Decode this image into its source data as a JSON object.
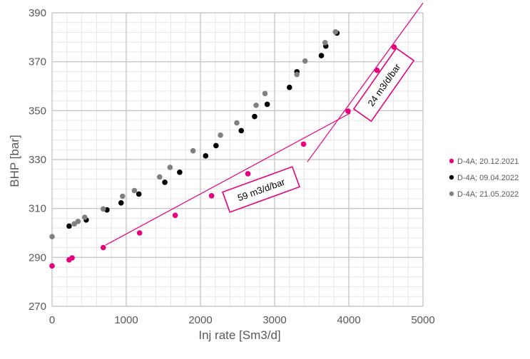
{
  "chart_data": {
    "type": "scatter",
    "xlabel": "Inj rate [Sm3/d]",
    "ylabel": "BHP [bar]",
    "xlim": [
      0,
      5000
    ],
    "ylim": [
      270,
      390
    ],
    "xticks": [
      0,
      1000,
      2000,
      3000,
      4000,
      5000
    ],
    "yticks": [
      270,
      290,
      310,
      330,
      350,
      370,
      390
    ],
    "grid": true,
    "legend_position": "right",
    "series": [
      {
        "name": "D-4A; 20.12.2021",
        "color": "#e6007e",
        "points": [
          [
            0,
            286.5
          ],
          [
            230,
            289
          ],
          [
            270,
            289.8
          ],
          [
            690,
            294
          ],
          [
            1180,
            300
          ],
          [
            1660,
            307.2
          ],
          [
            2150,
            315.2
          ],
          [
            2640,
            324.2
          ],
          [
            3390,
            336.3
          ],
          [
            3990,
            349.8
          ],
          [
            4380,
            366.5
          ],
          [
            4610,
            376
          ]
        ]
      },
      {
        "name": "D-4A; 09.04.2022",
        "color": "#000000",
        "points": [
          [
            230,
            302.8
          ],
          [
            460,
            305.3
          ],
          [
            740,
            309.4
          ],
          [
            930,
            312.3
          ],
          [
            1170,
            315.9
          ],
          [
            1520,
            320.7
          ],
          [
            1720,
            324.8
          ],
          [
            2070,
            331.5
          ],
          [
            2210,
            335.7
          ],
          [
            2550,
            341.8
          ],
          [
            2730,
            347.6
          ],
          [
            2900,
            352.6
          ],
          [
            3200,
            359.5
          ],
          [
            3300,
            365.9
          ],
          [
            3630,
            372.5
          ],
          [
            3690,
            376.4
          ],
          [
            3840,
            381.7
          ]
        ]
      },
      {
        "name": "D-4A; 21.05.2022",
        "color": "#808080",
        "points": [
          [
            0,
            298.5
          ],
          [
            300,
            303.7
          ],
          [
            350,
            304.7
          ],
          [
            440,
            306.4
          ],
          [
            690,
            309.8
          ],
          [
            950,
            315
          ],
          [
            1110,
            317.3
          ],
          [
            1450,
            322.9
          ],
          [
            1590,
            326.8
          ],
          [
            1900,
            333.6
          ],
          [
            2270,
            340
          ],
          [
            2490,
            345
          ],
          [
            2750,
            352.2
          ],
          [
            2870,
            357
          ],
          [
            3300,
            364.8
          ],
          [
            3410,
            370.3
          ],
          [
            3680,
            377.8
          ],
          [
            3820,
            382.2
          ]
        ]
      }
    ],
    "annotations": [
      {
        "text": "59 m3/d/bar",
        "line_from": [
          720,
          295
        ],
        "line_to": [
          4020,
          349
        ]
      },
      {
        "text": "24 m3/d/bar",
        "line_from": [
          3440,
          329
        ],
        "line_to": [
          5000,
          394
        ]
      }
    ]
  }
}
